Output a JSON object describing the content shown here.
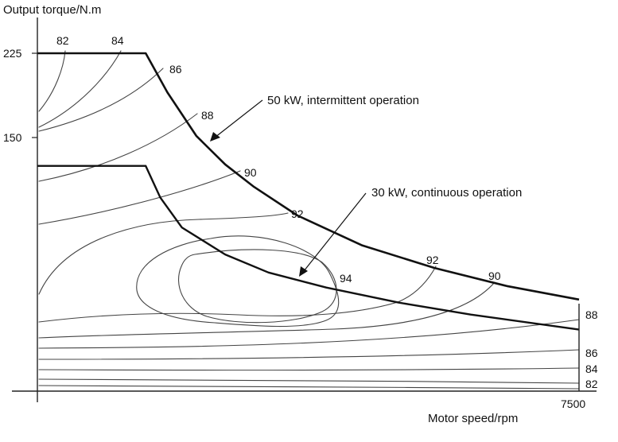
{
  "chart_data": {
    "type": "efficiency_map",
    "xlabel": "Motor speed/rpm",
    "ylabel": "Output torque/N.m",
    "x_ticks": [
      "7500"
    ],
    "y_ticks": [
      "225",
      "150"
    ],
    "xlim": [
      0,
      7500
    ],
    "ylim": [
      0,
      225
    ],
    "envelopes": [
      {
        "name": "50 kW, intermittent operation",
        "points": [
          [
            0,
            225
          ],
          [
            1500,
            225
          ],
          [
            1800,
            199
          ],
          [
            2200,
            170
          ],
          [
            2600,
            151
          ],
          [
            3000,
            136
          ],
          [
            3600,
            117
          ],
          [
            4500,
            97
          ],
          [
            5500,
            82
          ],
          [
            6500,
            70
          ],
          [
            7500,
            61
          ]
        ]
      },
      {
        "name": "30 kW, continuous operation",
        "points": [
          [
            0,
            150
          ],
          [
            1500,
            150
          ],
          [
            1700,
            129
          ],
          [
            2000,
            109
          ],
          [
            2600,
            91
          ],
          [
            3200,
            79
          ],
          [
            4000,
            69
          ],
          [
            5000,
            59
          ],
          [
            6000,
            51
          ],
          [
            7500,
            41
          ]
        ]
      }
    ],
    "contour_labels": [
      "82",
      "84",
      "86",
      "88",
      "90",
      "92",
      "92",
      "90",
      "94",
      "88",
      "86",
      "84",
      "82"
    ],
    "annotations": [
      "50 kW, intermittent operation",
      "30 kW, continuous operation"
    ]
  }
}
